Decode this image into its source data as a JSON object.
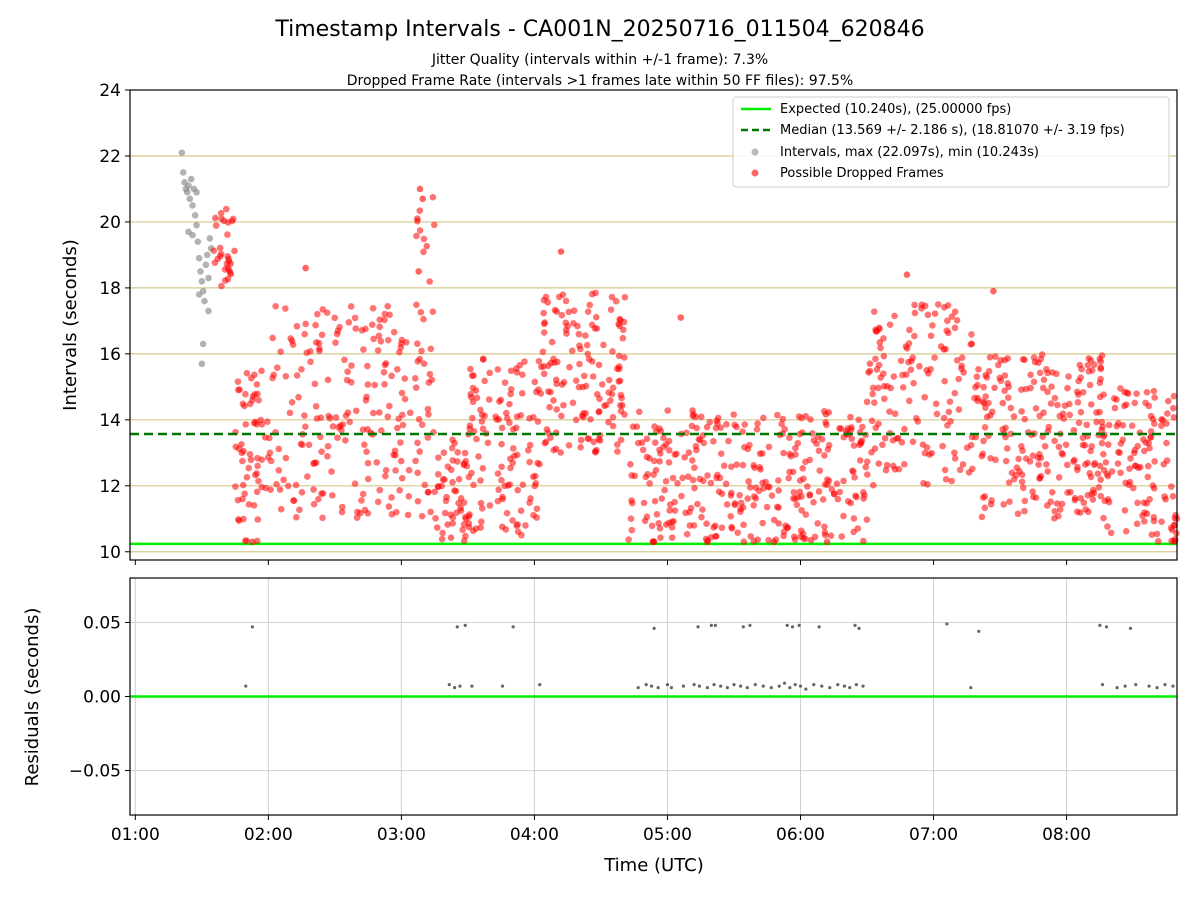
{
  "chart_data": [
    {
      "type": "scatter",
      "title": "Timestamp Intervals - CA001N_20250716_011504_620846",
      "subtitle_lines": [
        "Jitter Quality (intervals within +/-1 frame): 7.3%",
        "Dropped Frame Rate (intervals >1 frames late within 50 FF files): 97.5%"
      ],
      "ylabel": "Intervals (seconds)",
      "xlim": [
        0.96,
        8.83
      ],
      "ylim": [
        9.75,
        24
      ],
      "yticks": [
        10,
        12,
        14,
        16,
        18,
        20,
        22,
        24
      ],
      "ytick_labels": [
        "10",
        "12",
        "14",
        "16",
        "18",
        "20",
        "22",
        "24"
      ],
      "grid_y_lines": [
        10,
        12,
        14,
        16,
        18,
        20,
        22
      ],
      "legend_position": "upper right",
      "expected_interval": 10.24,
      "median_interval": 13.569,
      "colors": {
        "expected": "#00ee00",
        "median": "#007700",
        "intervals": "#888888",
        "dropped": "#ff0000",
        "grid": "#d6c98e"
      },
      "legend": [
        {
          "label": "Expected (10.240s), (25.00000 fps)",
          "marker": "solid-line",
          "color": "#00ee00"
        },
        {
          "label": "Median (13.569 +/- 2.186 s), (18.81070 +/- 3.19 fps)",
          "marker": "dashed-line",
          "color": "#007700"
        },
        {
          "label": "Intervals, max (22.097s), min (10.243s)",
          "marker": "dot",
          "color": "#888888"
        },
        {
          "label": "Possible Dropped Frames",
          "marker": "dot",
          "color": "#ff0000"
        }
      ],
      "series": [
        {
          "name": "Intervals, max (22.097s), min (10.243s)",
          "points": [
            [
              1.35,
              22.1
            ],
            [
              1.36,
              21.5
            ],
            [
              1.37,
              21.2
            ],
            [
              1.38,
              21.0
            ],
            [
              1.39,
              20.9
            ],
            [
              1.4,
              21.1
            ],
            [
              1.41,
              20.7
            ],
            [
              1.42,
              21.3
            ],
            [
              1.43,
              20.5
            ],
            [
              1.44,
              21.0
            ],
            [
              1.45,
              20.2
            ],
            [
              1.46,
              20.9
            ],
            [
              1.4,
              19.7
            ],
            [
              1.43,
              19.6
            ],
            [
              1.47,
              19.4
            ],
            [
              1.48,
              18.9
            ],
            [
              1.49,
              18.5
            ],
            [
              1.5,
              18.2
            ],
            [
              1.51,
              17.9
            ],
            [
              1.52,
              17.6
            ],
            [
              1.53,
              18.7
            ],
            [
              1.54,
              19.0
            ],
            [
              1.55,
              18.3
            ],
            [
              1.56,
              19.5
            ],
            [
              1.57,
              19.2
            ],
            [
              1.5,
              15.7
            ],
            [
              1.51,
              16.3
            ],
            [
              1.48,
              17.8
            ],
            [
              1.55,
              17.3
            ],
            [
              1.46,
              19.9
            ]
          ]
        },
        {
          "name": "Possible Dropped Frames",
          "segments": [
            {
              "x": [
                1.57,
                1.75
              ],
              "y": [
                18.0,
                20.4
              ],
              "n": 30
            },
            {
              "x": [
                1.75,
                2.0
              ],
              "y": [
                10.3,
                15.5
              ],
              "n": 60
            },
            {
              "x": [
                2.0,
                3.25
              ],
              "y": [
                11.0,
                17.5
              ],
              "n": 220
            },
            {
              "x": [
                3.1,
                3.25
              ],
              "y": [
                18.0,
                21.0
              ],
              "n": 10
            },
            {
              "x": [
                3.25,
                3.5
              ],
              "y": [
                10.3,
                13.5
              ],
              "n": 50
            },
            {
              "x": [
                3.5,
                4.05
              ],
              "y": [
                10.5,
                16.0
              ],
              "n": 120
            },
            {
              "x": [
                4.05,
                4.7
              ],
              "y": [
                13.0,
                18.0
              ],
              "n": 140
            },
            {
              "x": [
                4.7,
                6.5
              ],
              "y": [
                10.3,
                14.3
              ],
              "n": 320
            },
            {
              "x": [
                6.5,
                7.3
              ],
              "y": [
                12.0,
                17.5
              ],
              "n": 140
            },
            {
              "x": [
                7.3,
                8.3
              ],
              "y": [
                11.0,
                16.0
              ],
              "n": 230
            },
            {
              "x": [
                8.3,
                8.83
              ],
              "y": [
                10.3,
                15.0
              ],
              "n": 110
            }
          ],
          "points": [
            [
              3.12,
              20.1
            ],
            [
              3.14,
              21.0
            ],
            [
              3.16,
              20.7
            ],
            [
              3.13,
              18.5
            ],
            [
              4.2,
              19.1
            ],
            [
              6.8,
              18.4
            ],
            [
              4.9,
              10.3
            ],
            [
              5.3,
              10.3
            ],
            [
              5.8,
              10.3
            ],
            [
              6.2,
              10.3
            ],
            [
              1.88,
              10.3
            ],
            [
              2.28,
              18.6
            ],
            [
              5.1,
              17.1
            ],
            [
              7.45,
              17.9
            ]
          ]
        }
      ]
    },
    {
      "type": "scatter",
      "xlabel": "Time (UTC)",
      "ylabel": "Residuals (seconds)",
      "xlim": [
        0.96,
        8.83
      ],
      "ylim": [
        -0.08,
        0.08
      ],
      "yticks": [
        -0.05,
        0.0,
        0.05
      ],
      "ytick_labels": [
        "−0.05",
        "0.00",
        "0.05"
      ],
      "xticks": [
        1,
        2,
        3,
        4,
        5,
        6,
        7,
        8
      ],
      "xtick_labels": [
        "01:00",
        "02:00",
        "03:00",
        "04:00",
        "05:00",
        "06:00",
        "07:00",
        "08:00"
      ],
      "zero_line": 0.0,
      "series": [
        {
          "name": "",
          "points": [
            [
              1.88,
              0.047
            ],
            [
              1.83,
              0.007
            ],
            [
              3.42,
              0.047
            ],
            [
              3.48,
              0.048
            ],
            [
              3.84,
              0.047
            ],
            [
              3.36,
              0.008
            ],
            [
              3.4,
              0.006
            ],
            [
              3.44,
              0.007
            ],
            [
              3.53,
              0.007
            ],
            [
              3.76,
              0.007
            ],
            [
              4.04,
              0.008
            ],
            [
              4.9,
              0.046
            ],
            [
              5.23,
              0.047
            ],
            [
              5.33,
              0.048
            ],
            [
              5.36,
              0.048
            ],
            [
              5.57,
              0.047
            ],
            [
              5.62,
              0.048
            ],
            [
              5.9,
              0.048
            ],
            [
              5.94,
              0.047
            ],
            [
              5.99,
              0.048
            ],
            [
              6.14,
              0.047
            ],
            [
              6.41,
              0.048
            ],
            [
              6.44,
              0.046
            ],
            [
              7.1,
              0.049
            ],
            [
              7.34,
              0.044
            ],
            [
              4.78,
              0.006
            ],
            [
              4.84,
              0.008
            ],
            [
              4.88,
              0.007
            ],
            [
              4.93,
              0.006
            ],
            [
              5.0,
              0.008
            ],
            [
              5.03,
              0.006
            ],
            [
              5.12,
              0.007
            ],
            [
              5.2,
              0.008
            ],
            [
              5.24,
              0.007
            ],
            [
              5.3,
              0.006
            ],
            [
              5.35,
              0.008
            ],
            [
              5.4,
              0.007
            ],
            [
              5.45,
              0.006
            ],
            [
              5.5,
              0.008
            ],
            [
              5.55,
              0.007
            ],
            [
              5.6,
              0.006
            ],
            [
              5.66,
              0.008
            ],
            [
              5.72,
              0.007
            ],
            [
              5.78,
              0.006
            ],
            [
              5.84,
              0.007
            ],
            [
              5.88,
              0.009
            ],
            [
              5.92,
              0.006
            ],
            [
              5.96,
              0.008
            ],
            [
              6.0,
              0.007
            ],
            [
              6.04,
              0.005
            ],
            [
              6.1,
              0.008
            ],
            [
              6.16,
              0.007
            ],
            [
              6.22,
              0.006
            ],
            [
              6.28,
              0.008
            ],
            [
              6.33,
              0.007
            ],
            [
              6.37,
              0.006
            ],
            [
              6.42,
              0.008
            ],
            [
              6.47,
              0.007
            ],
            [
              7.28,
              0.006
            ],
            [
              8.25,
              0.048
            ],
            [
              8.3,
              0.047
            ],
            [
              8.48,
              0.046
            ],
            [
              8.27,
              0.008
            ],
            [
              8.38,
              0.006
            ],
            [
              8.44,
              0.007
            ],
            [
              8.52,
              0.008
            ],
            [
              8.62,
              0.007
            ],
            [
              8.68,
              0.006
            ],
            [
              8.74,
              0.008
            ],
            [
              8.8,
              0.007
            ]
          ]
        }
      ]
    }
  ]
}
